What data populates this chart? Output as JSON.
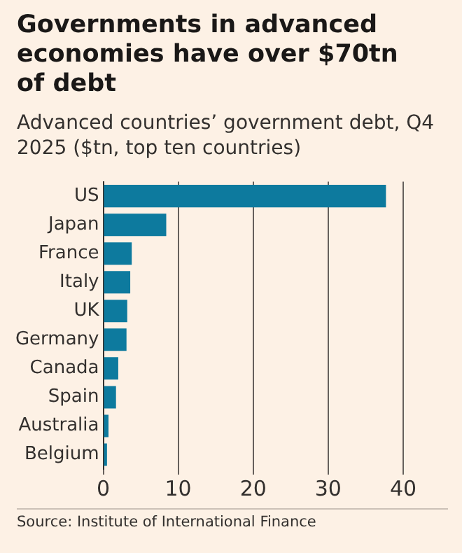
{
  "chart_data": {
    "type": "bar",
    "orientation": "horizontal",
    "title": "Governments in advanced economies have over $70tn of debt",
    "subtitle": "Advanced countries’ government debt, Q4 2025 ($tn, top ten countries)",
    "categories": [
      "US",
      "Japan",
      "France",
      "Italy",
      "UK",
      "Germany",
      "Canada",
      "Spain",
      "Australia",
      "Belgium"
    ],
    "values": [
      37.7,
      8.4,
      3.8,
      3.6,
      3.2,
      3.1,
      2.0,
      1.7,
      0.7,
      0.5
    ],
    "color": "#0d7a9e",
    "xlim": [
      0,
      40
    ],
    "xticks": [
      0,
      10,
      20,
      30,
      40
    ],
    "grid": "x",
    "annotations": [
      "Source: Institute of International Finance"
    ]
  }
}
